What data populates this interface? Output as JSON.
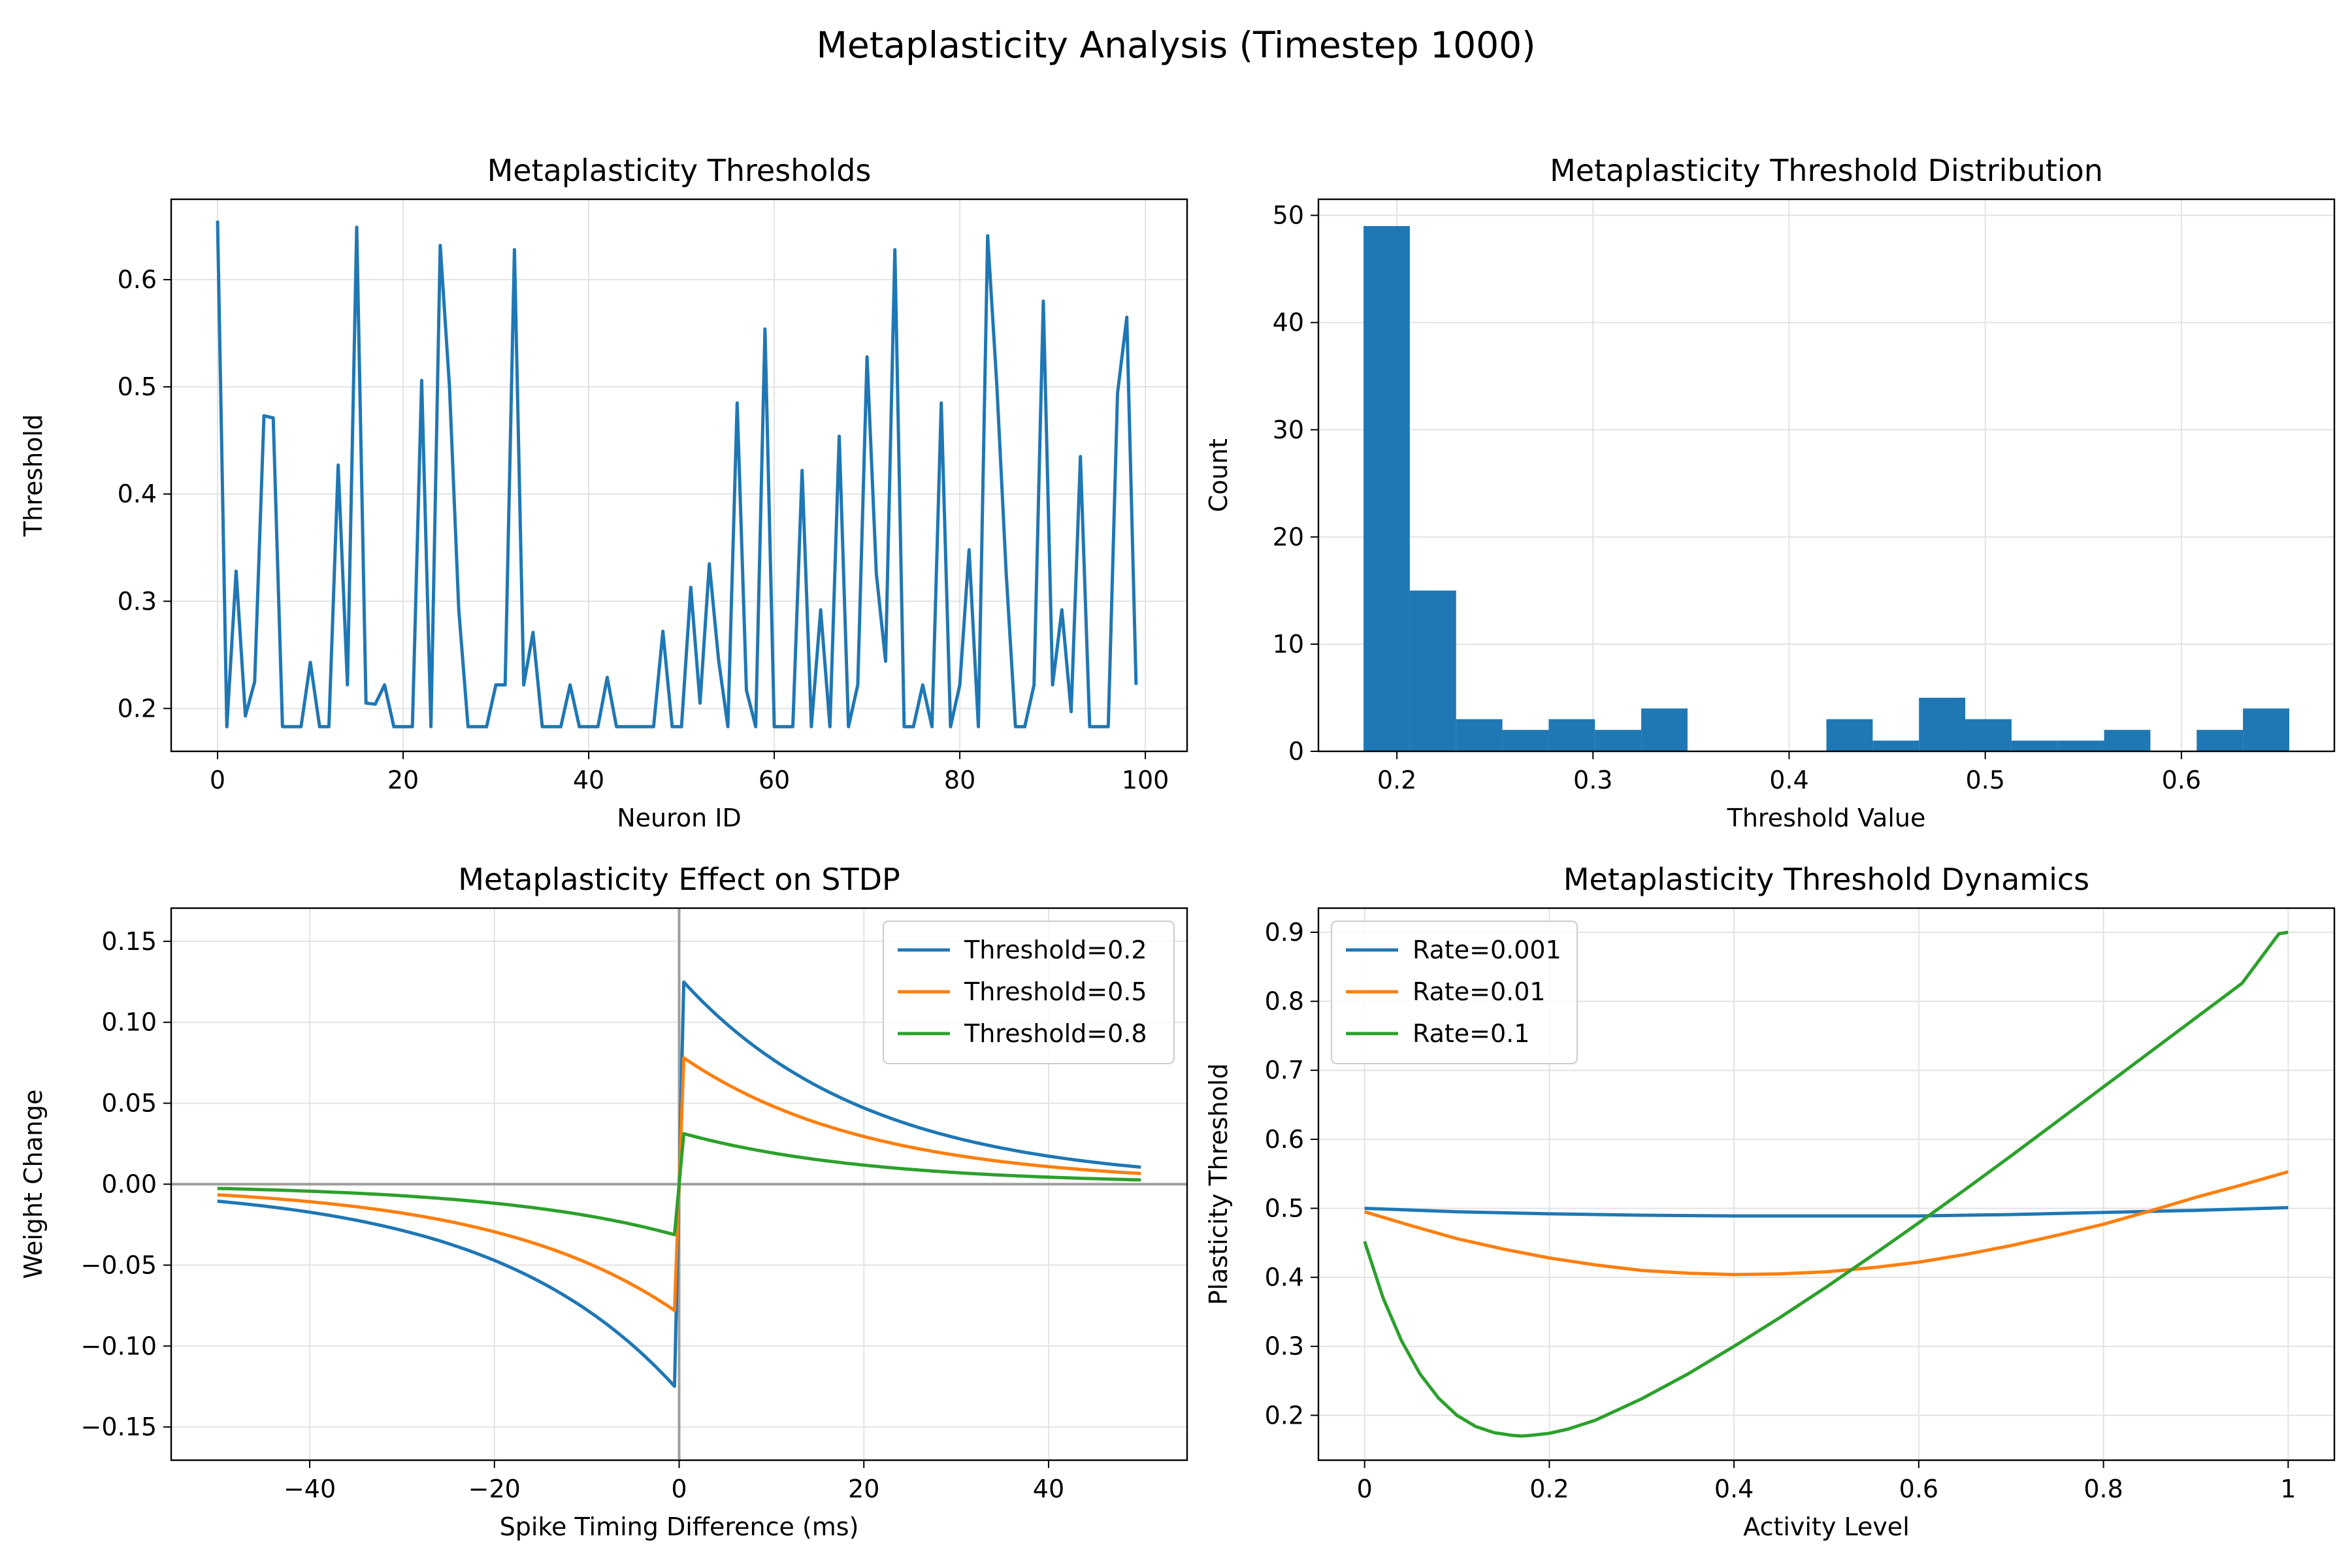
{
  "figure": {
    "title": "Metaplasticity Analysis (Timestep 1000)"
  },
  "chart_data": [
    {
      "type": "line",
      "title": "Metaplasticity Thresholds",
      "xlabel": "Neuron ID",
      "ylabel": "Threshold",
      "xlim": [
        -5,
        104.5
      ],
      "ylim": [
        0.16,
        0.675
      ],
      "xticks": [
        0,
        20,
        40,
        60,
        80,
        100
      ],
      "yticks": [
        0.2,
        0.3,
        0.4,
        0.5,
        0.6
      ],
      "grid": true,
      "series": [
        {
          "color": "#1f77b4",
          "x": [
            0,
            1,
            2,
            3,
            4,
            5,
            6,
            7,
            8,
            9,
            10,
            11,
            12,
            13,
            14,
            15,
            16,
            17,
            18,
            19,
            20,
            21,
            22,
            23,
            24,
            25,
            26,
            27,
            28,
            29,
            30,
            31,
            32,
            33,
            34,
            35,
            36,
            37,
            38,
            39,
            40,
            41,
            42,
            43,
            44,
            45,
            46,
            47,
            48,
            49,
            50,
            51,
            52,
            53,
            54,
            55,
            56,
            57,
            58,
            59,
            60,
            61,
            62,
            63,
            64,
            65,
            66,
            67,
            68,
            69,
            70,
            71,
            72,
            73,
            74,
            75,
            76,
            77,
            78,
            79,
            80,
            81,
            82,
            83,
            84,
            85,
            86,
            87,
            88,
            89,
            90,
            91,
            92,
            93,
            94,
            95,
            96,
            97,
            98,
            99
          ],
          "y": [
            0.655,
            0.183,
            0.328,
            0.193,
            0.225,
            0.473,
            0.471,
            0.183,
            0.183,
            0.183,
            0.243,
            0.183,
            0.183,
            0.427,
            0.222,
            0.649,
            0.205,
            0.204,
            0.222,
            0.183,
            0.183,
            0.183,
            0.506,
            0.183,
            0.632,
            0.5,
            0.292,
            0.183,
            0.183,
            0.183,
            0.222,
            0.222,
            0.628,
            0.222,
            0.271,
            0.183,
            0.183,
            0.183,
            0.222,
            0.183,
            0.183,
            0.183,
            0.229,
            0.183,
            0.183,
            0.183,
            0.183,
            0.183,
            0.272,
            0.183,
            0.183,
            0.313,
            0.205,
            0.335,
            0.245,
            0.183,
            0.485,
            0.217,
            0.183,
            0.554,
            0.183,
            0.183,
            0.183,
            0.422,
            0.183,
            0.292,
            0.183,
            0.454,
            0.183,
            0.222,
            0.528,
            0.326,
            0.244,
            0.628,
            0.183,
            0.183,
            0.222,
            0.183,
            0.485,
            0.183,
            0.222,
            0.348,
            0.183,
            0.641,
            0.5,
            0.326,
            0.183,
            0.183,
            0.222,
            0.58,
            0.222,
            0.292,
            0.197,
            0.435,
            0.183,
            0.183,
            0.183,
            0.494,
            0.565,
            0.222
          ]
        }
      ]
    },
    {
      "type": "bar",
      "title": "Metaplasticity Threshold Distribution",
      "xlabel": "Threshold Value",
      "ylabel": "Count",
      "xlim": [
        0.16,
        0.678
      ],
      "ylim": [
        0,
        51.5
      ],
      "xticks": [
        0.2,
        0.3,
        0.4,
        0.5,
        0.6
      ],
      "yticks": [
        0,
        10,
        20,
        30,
        40,
        50
      ],
      "grid": true,
      "bar_color": "#1f77b4",
      "bin_edges": [
        0.183,
        0.2066,
        0.2302,
        0.2538,
        0.2774,
        0.301,
        0.3246,
        0.3482,
        0.3718,
        0.3954,
        0.419,
        0.4426,
        0.4662,
        0.4898,
        0.5134,
        0.537,
        0.5606,
        0.5842,
        0.6078,
        0.6314,
        0.655
      ],
      "values": [
        49,
        15,
        3,
        2,
        3,
        2,
        4,
        0,
        0,
        0,
        3,
        1,
        5,
        3,
        1,
        1,
        2,
        0,
        2,
        4
      ]
    },
    {
      "type": "line",
      "title": "Metaplasticity Effect on STDP",
      "xlabel": "Spike Timing Difference (ms)",
      "ylabel": "Weight Change",
      "xlim": [
        -55,
        55
      ],
      "ylim": [
        -0.1705,
        0.1705
      ],
      "xticks": [
        -40,
        -20,
        0,
        20,
        40
      ],
      "yticks": [
        -0.15,
        -0.1,
        -0.05,
        0.0,
        0.05,
        0.1,
        0.15
      ],
      "ytick_labels": [
        "−0.15",
        "−0.10",
        "−0.05",
        "0.00",
        "0.05",
        "0.10",
        "0.15"
      ],
      "xtick_labels": [
        "−40",
        "−20",
        "0",
        "20",
        "40"
      ],
      "reference_lines": {
        "y": 0,
        "x": 0,
        "color": "#9e9e9e"
      },
      "grid": true,
      "legend_position": "upper right",
      "model": {
        "a_plus": 0.16,
        "a_minus": 0.16,
        "tau": 20
      },
      "series": [
        {
          "name": "Threshold=0.2",
          "threshold": 0.2,
          "color": "#1f77b4"
        },
        {
          "name": "Threshold=0.5",
          "threshold": 0.5,
          "color": "#ff7f0e"
        },
        {
          "name": "Threshold=0.8",
          "threshold": 0.8,
          "color": "#2ca02c"
        }
      ]
    },
    {
      "type": "line",
      "title": "Metaplasticity Threshold Dynamics",
      "xlabel": "Activity Level",
      "ylabel": "Plasticity Threshold",
      "xlim": [
        -0.05,
        1.05
      ],
      "ylim": [
        0.135,
        0.935
      ],
      "xticks": [
        0.0,
        0.2,
        0.4,
        0.6,
        0.8,
        1.0
      ],
      "yticks": [
        0.2,
        0.3,
        0.4,
        0.5,
        0.6,
        0.7,
        0.8,
        0.9
      ],
      "grid": true,
      "legend_position": "upper left",
      "series": [
        {
          "name": "Rate=0.001",
          "color": "#1f77b4",
          "x": [
            0,
            0.1,
            0.2,
            0.3,
            0.4,
            0.5,
            0.6,
            0.7,
            0.8,
            0.9,
            1.0
          ],
          "y": [
            0.5,
            0.495,
            0.492,
            0.49,
            0.489,
            0.489,
            0.489,
            0.491,
            0.494,
            0.497,
            0.501
          ]
        },
        {
          "name": "Rate=0.01",
          "color": "#ff7f0e",
          "x": [
            0,
            0.05,
            0.1,
            0.15,
            0.2,
            0.25,
            0.3,
            0.35,
            0.4,
            0.45,
            0.5,
            0.55,
            0.6,
            0.65,
            0.7,
            0.75,
            0.8,
            0.85,
            0.9,
            0.95,
            1.0
          ],
          "y": [
            0.495,
            0.475,
            0.456,
            0.441,
            0.428,
            0.418,
            0.41,
            0.406,
            0.404,
            0.405,
            0.408,
            0.414,
            0.422,
            0.433,
            0.446,
            0.461,
            0.477,
            0.496,
            0.516,
            0.534,
            0.553
          ]
        },
        {
          "name": "Rate=0.1",
          "color": "#2ca02c",
          "x": [
            0,
            0.02,
            0.04,
            0.06,
            0.08,
            0.1,
            0.12,
            0.14,
            0.16,
            0.17,
            0.18,
            0.2,
            0.22,
            0.25,
            0.3,
            0.35,
            0.4,
            0.45,
            0.5,
            0.55,
            0.6,
            0.65,
            0.7,
            0.75,
            0.8,
            0.85,
            0.9,
            0.95,
            0.99,
            1.0
          ],
          "y": [
            0.452,
            0.37,
            0.308,
            0.26,
            0.225,
            0.2,
            0.184,
            0.175,
            0.171,
            0.17,
            0.171,
            0.174,
            0.18,
            0.193,
            0.224,
            0.26,
            0.3,
            0.342,
            0.386,
            0.432,
            0.479,
            0.527,
            0.576,
            0.626,
            0.676,
            0.726,
            0.776,
            0.826,
            0.898,
            0.9
          ]
        }
      ]
    }
  ]
}
